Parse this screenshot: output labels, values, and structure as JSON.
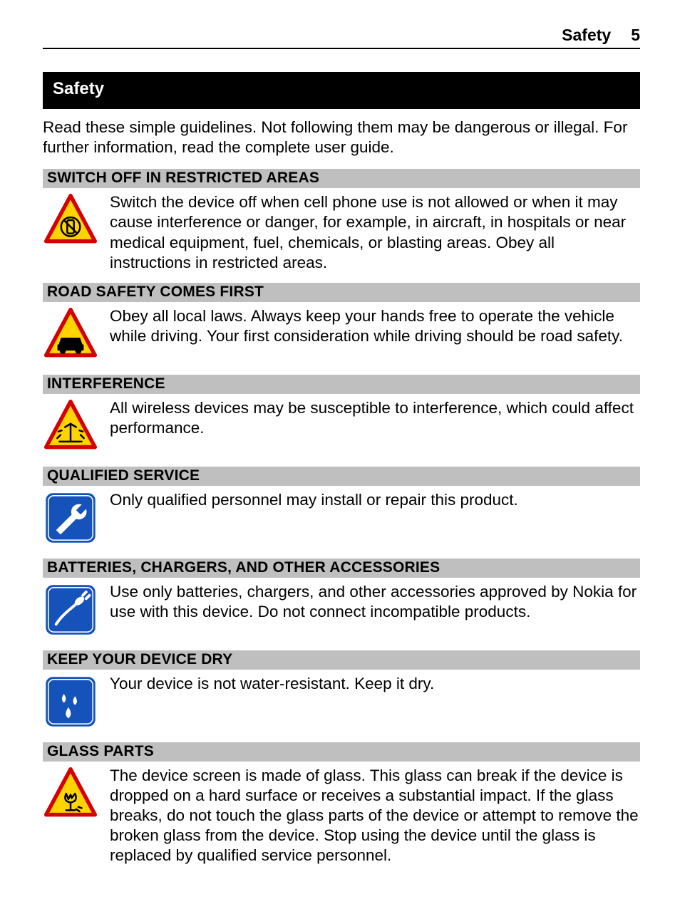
{
  "page": {
    "running_title": "Safety",
    "page_number": "5",
    "background_color": "#ffffff",
    "text_color": "#000000",
    "header_rule_color": "#000000",
    "body_font_size_pt": 17,
    "heading_font_size_pt": 16
  },
  "main_heading": {
    "label": "Safety",
    "bg_color": "#000000",
    "fg_color": "#ffffff"
  },
  "intro_text": "Read these simple guidelines. Not following them may be dangerous or illegal. For further information, read the complete user guide.",
  "section_heading_bg": "#bfbfbf",
  "icon_colors": {
    "warning_fill": "#ffd400",
    "warning_border": "#d40000",
    "warning_glyph": "#000000",
    "info_fill": "#1552b9",
    "info_border": "#ffffff",
    "info_glyph": "#ffffff"
  },
  "sections": [
    {
      "id": "switch-off",
      "title": "SWITCH OFF IN RESTRICTED AREAS",
      "icon_type": "warning",
      "icon_name": "no-phone-icon",
      "body": "Switch the device off when cell phone use is not allowed or when it may cause interference or danger, for example, in aircraft, in hospitals or near medical equipment, fuel, chemicals, or blasting areas. Obey all instructions in restricted areas."
    },
    {
      "id": "road-safety",
      "title": "ROAD SAFETY COMES FIRST",
      "icon_type": "warning",
      "icon_name": "car-icon",
      "body": "Obey all local laws. Always keep your hands free to operate the vehicle while driving. Your first consideration while driving should be road safety."
    },
    {
      "id": "interference",
      "title": "INTERFERENCE",
      "icon_type": "warning",
      "icon_name": "antenna-interference-icon",
      "body": "All wireless devices may be susceptible to interference, which could affect performance."
    },
    {
      "id": "qualified-service",
      "title": "QUALIFIED SERVICE",
      "icon_type": "info",
      "icon_name": "wrench-icon",
      "body": "Only qualified personnel may install or repair this product."
    },
    {
      "id": "accessories",
      "title": "BATTERIES, CHARGERS, AND OTHER ACCESSORIES",
      "icon_type": "info",
      "icon_name": "charger-plug-icon",
      "body": "Use only batteries, chargers, and other accessories approved by Nokia for use with this device. Do not connect incompatible products."
    },
    {
      "id": "keep-dry",
      "title": "KEEP YOUR DEVICE DRY",
      "icon_type": "info",
      "icon_name": "water-drops-icon",
      "body": "Your device is not water-resistant. Keep it dry."
    },
    {
      "id": "glass-parts",
      "title": "GLASS PARTS",
      "icon_type": "warning",
      "icon_name": "broken-glass-icon",
      "body": "The device screen is made of glass. This glass can break if the device is dropped on a hard surface or receives a substantial impact. If the glass breaks, do not touch the glass parts of the device or attempt to remove the broken glass from the device. Stop using the device until the glass is replaced by qualified service personnel."
    }
  ]
}
